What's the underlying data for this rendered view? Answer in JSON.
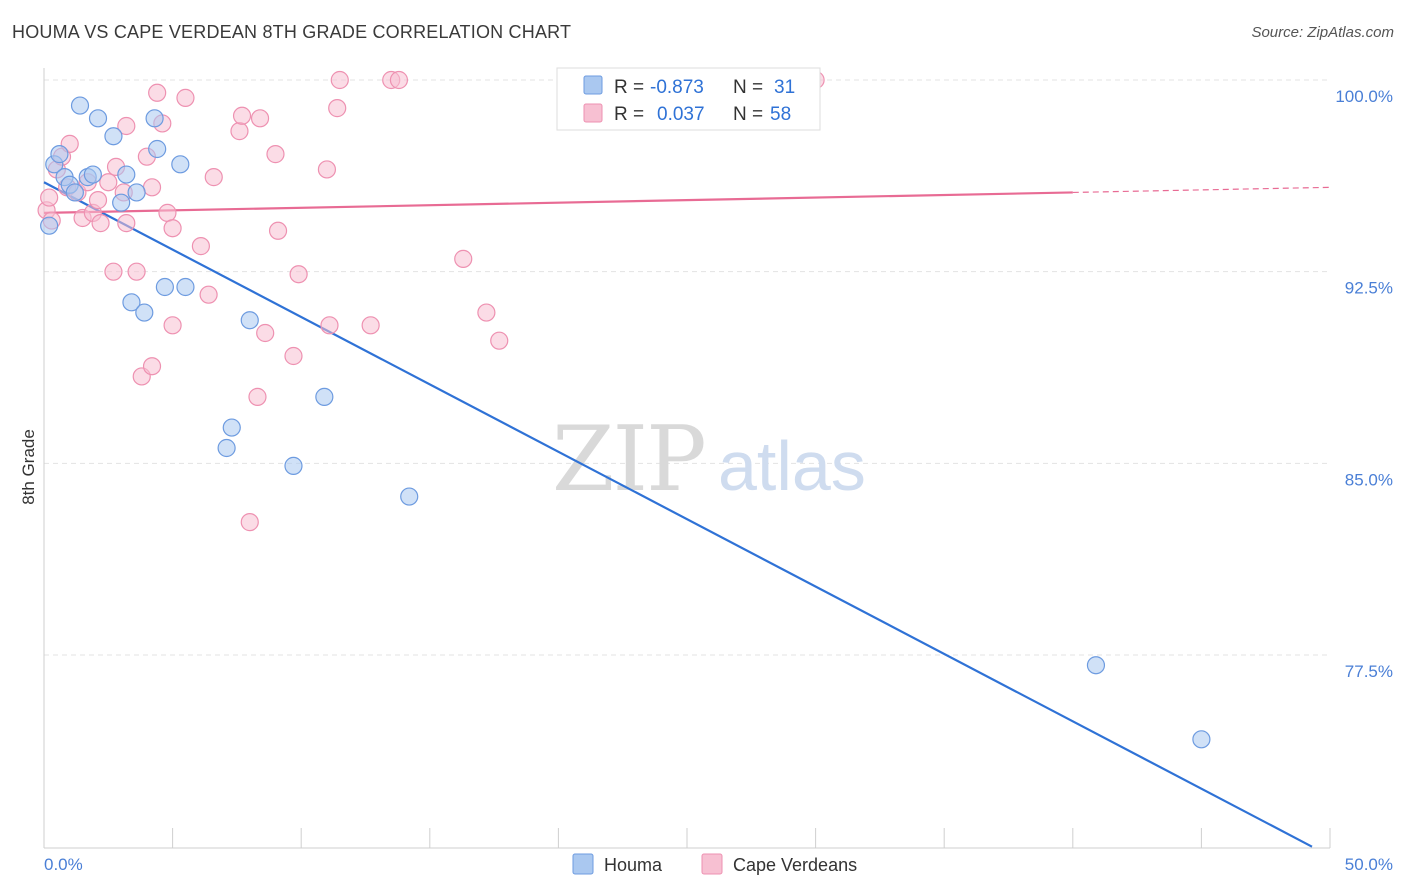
{
  "header": {
    "title": "HOUMA VS CAPE VERDEAN 8TH GRADE CORRELATION CHART",
    "source": "Source: ZipAtlas.com"
  },
  "legend": {
    "r_label": "R =",
    "n_label": "N =",
    "series": [
      {
        "name": "Houma",
        "r": "-0.873",
        "n": "31"
      },
      {
        "name": "Cape Verdeans",
        "r": "0.037",
        "n": "58"
      }
    ]
  },
  "watermark": {
    "zip": "ZIP",
    "atlas": "atlas"
  },
  "colors": {
    "houma_fill": "#aac8f0",
    "houma_stroke": "#6d9be0",
    "houma_line": "#2f72d6",
    "cape_fill": "#f7c0d2",
    "cape_stroke": "#ee91b1",
    "cape_line": "#e86b94",
    "grid": "#e3e3e3",
    "tick_text": "#4a7fd6"
  },
  "chart_data": {
    "type": "scatter",
    "title": "HOUMA VS CAPE VERDEAN 8TH GRADE CORRELATION CHART",
    "xlabel": "",
    "ylabel": "8th Grade",
    "xlim": [
      0,
      50
    ],
    "ylim": [
      70.0,
      100.8
    ],
    "x_tick_labels": [
      {
        "value": 0,
        "label": "0.0%"
      },
      {
        "value": 50,
        "label": "50.0%"
      }
    ],
    "y_ticks": [
      {
        "value": 100.0,
        "label": "100.0%"
      },
      {
        "value": 92.5,
        "label": "92.5%"
      },
      {
        "value": 85.0,
        "label": "85.0%"
      },
      {
        "value": 77.5,
        "label": "77.5%"
      }
    ],
    "x_minor_ticks": [
      5,
      10,
      15,
      20,
      25,
      30,
      35,
      40,
      45,
      50
    ],
    "grid": true,
    "legend_position": "top-center",
    "series": [
      {
        "name": "Houma",
        "points": [
          [
            0.2,
            94.3
          ],
          [
            0.4,
            96.7
          ],
          [
            0.6,
            97.1
          ],
          [
            0.8,
            96.2
          ],
          [
            1.0,
            95.9
          ],
          [
            1.2,
            95.6
          ],
          [
            1.4,
            99.0
          ],
          [
            1.7,
            96.2
          ],
          [
            1.9,
            96.3
          ],
          [
            2.1,
            98.5
          ],
          [
            2.7,
            97.8
          ],
          [
            3.0,
            95.2
          ],
          [
            3.2,
            96.3
          ],
          [
            3.6,
            95.6
          ],
          [
            3.4,
            91.3
          ],
          [
            3.9,
            90.9
          ],
          [
            4.3,
            98.5
          ],
          [
            4.4,
            97.3
          ],
          [
            4.7,
            91.9
          ],
          [
            5.3,
            96.7
          ],
          [
            5.5,
            91.9
          ],
          [
            7.1,
            85.6
          ],
          [
            7.3,
            86.4
          ],
          [
            8.0,
            90.6
          ],
          [
            9.7,
            84.9
          ],
          [
            10.9,
            87.6
          ],
          [
            14.2,
            83.7
          ],
          [
            40.9,
            77.1
          ],
          [
            45.0,
            74.2
          ]
        ],
        "trend": {
          "x": [
            0,
            49.3
          ],
          "y": [
            96.0,
            70.0
          ]
        }
      },
      {
        "name": "Cape Verdeans",
        "points": [
          [
            0.1,
            94.9
          ],
          [
            0.2,
            95.4
          ],
          [
            0.3,
            94.5
          ],
          [
            0.5,
            96.5
          ],
          [
            0.7,
            97.0
          ],
          [
            0.9,
            95.8
          ],
          [
            1.0,
            97.5
          ],
          [
            1.3,
            95.6
          ],
          [
            1.5,
            94.6
          ],
          [
            1.7,
            96.0
          ],
          [
            1.9,
            94.8
          ],
          [
            2.1,
            95.3
          ],
          [
            2.2,
            94.4
          ],
          [
            2.5,
            96.0
          ],
          [
            2.7,
            92.5
          ],
          [
            2.8,
            96.6
          ],
          [
            3.1,
            95.6
          ],
          [
            3.2,
            98.2
          ],
          [
            3.2,
            94.4
          ],
          [
            3.6,
            92.5
          ],
          [
            3.8,
            88.4
          ],
          [
            4.0,
            97.0
          ],
          [
            4.2,
            95.8
          ],
          [
            4.2,
            88.8
          ],
          [
            4.4,
            99.5
          ],
          [
            4.6,
            98.3
          ],
          [
            4.8,
            94.8
          ],
          [
            5.0,
            94.2
          ],
          [
            5.0,
            90.4
          ],
          [
            5.5,
            99.3
          ],
          [
            6.1,
            93.5
          ],
          [
            6.4,
            91.6
          ],
          [
            6.6,
            96.2
          ],
          [
            7.6,
            98.0
          ],
          [
            7.7,
            98.6
          ],
          [
            8.0,
            82.7
          ],
          [
            8.3,
            87.6
          ],
          [
            8.4,
            98.5
          ],
          [
            8.6,
            90.1
          ],
          [
            9.0,
            97.1
          ],
          [
            9.1,
            94.1
          ],
          [
            9.7,
            89.2
          ],
          [
            9.9,
            92.4
          ],
          [
            11.0,
            96.5
          ],
          [
            11.1,
            90.4
          ],
          [
            11.4,
            98.9
          ],
          [
            11.5,
            100.0
          ],
          [
            12.7,
            90.4
          ],
          [
            13.5,
            100.0
          ],
          [
            13.8,
            100.0
          ],
          [
            16.3,
            93.0
          ],
          [
            17.2,
            90.9
          ],
          [
            17.7,
            89.8
          ],
          [
            30.0,
            100.0
          ]
        ],
        "trend": {
          "x": [
            0,
            40
          ],
          "y": [
            94.8,
            95.6
          ]
        },
        "trend_dashed": {
          "x": [
            40,
            50
          ],
          "y": [
            95.6,
            95.8
          ]
        }
      }
    ]
  }
}
